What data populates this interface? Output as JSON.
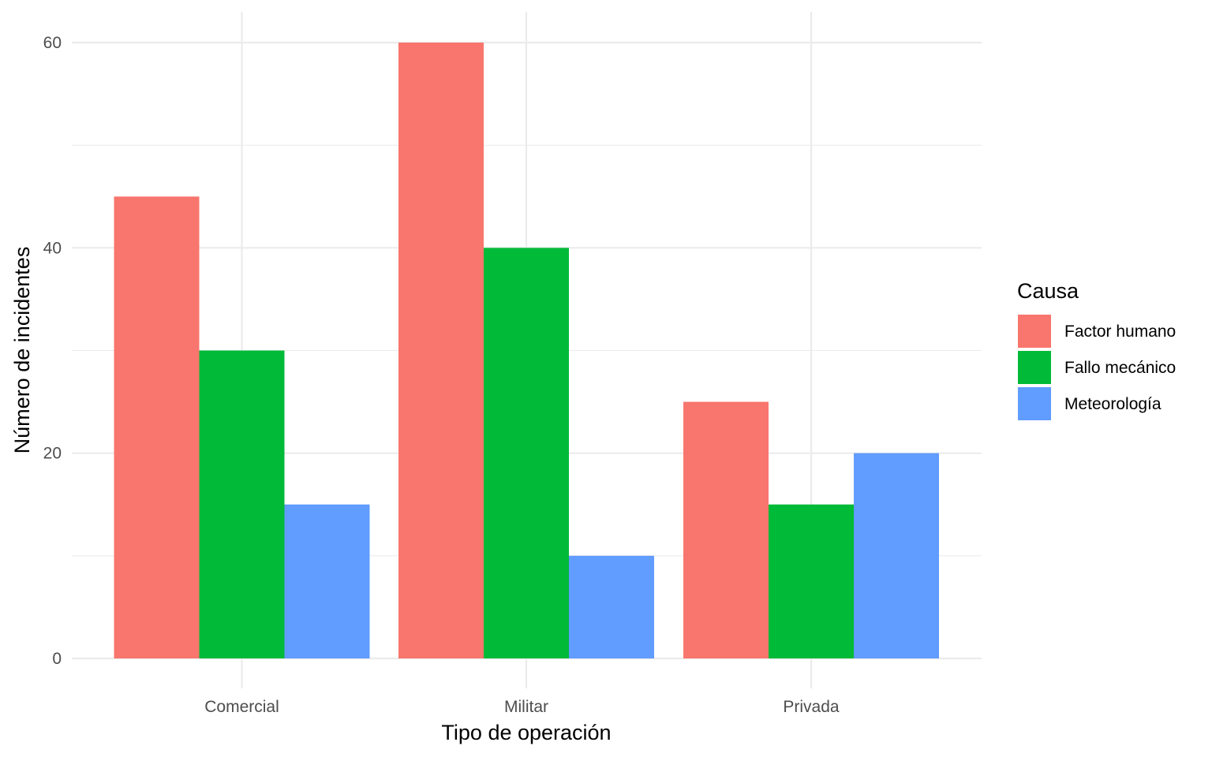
{
  "chart_data": {
    "type": "bar",
    "categories": [
      "Comercial",
      "Militar",
      "Privada"
    ],
    "series": [
      {
        "name": "Factor humano",
        "color": "#F8766D",
        "values": [
          45,
          60,
          25
        ]
      },
      {
        "name": "Fallo mecánico",
        "color": "#00BA38",
        "values": [
          30,
          40,
          15
        ]
      },
      {
        "name": "Meteorología",
        "color": "#619CFF",
        "values": [
          15,
          10,
          20
        ]
      }
    ],
    "xlabel": "Tipo de operación",
    "ylabel": "Número de incidentes",
    "ylim": [
      0,
      60
    ],
    "yticks": [
      0,
      20,
      40,
      60
    ],
    "legend_title": "Causa",
    "legend_position": "right",
    "grid": true,
    "bar_layout": "dodged"
  }
}
